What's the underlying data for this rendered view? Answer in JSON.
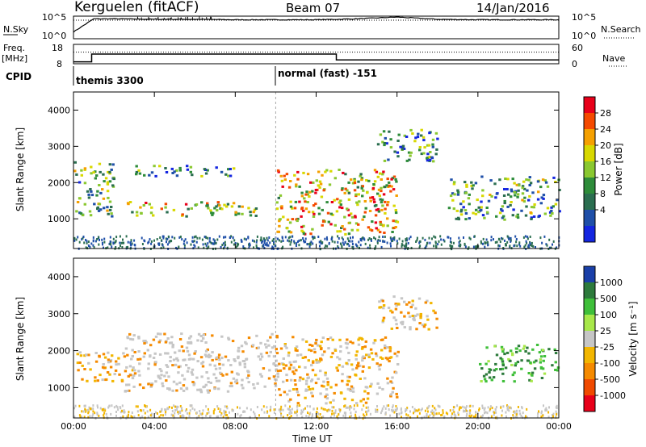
{
  "header": {
    "station": "Kerguelen (fitACF)",
    "beam": "Beam 07",
    "date": "14/Jan/2016"
  },
  "noise_panel": {
    "left_label": "N.Sky",
    "right_label": "N.Search",
    "tick_top": "10^5",
    "tick_bottom": "10^0",
    "right_tick_top": "10^5",
    "right_tick_bottom": "10^0"
  },
  "freq_panel": {
    "left_label_1": "Freq.",
    "left_label_2": "[MHz]",
    "right_label": "Nave",
    "ticks_left": [
      "18",
      "8"
    ],
    "ticks_right": [
      "60",
      "0"
    ]
  },
  "cpid": {
    "label": "CPID",
    "mode_1": "themis 3300",
    "mode_2": "normal (fast) -151"
  },
  "axes": {
    "ylabel": "Slant Range [km]",
    "xlabel": "Time UT",
    "yticks": [
      "4000",
      "3000",
      "2000",
      "1000"
    ],
    "xticks": [
      "00:00",
      "04:00",
      "08:00",
      "12:00",
      "16:00",
      "20:00",
      "00:00"
    ]
  },
  "power_scale": {
    "label": "Power [dB]",
    "ticks": [
      "28",
      "24",
      "20",
      "16",
      "12",
      "8",
      "4"
    ],
    "colors": [
      "#e8001a",
      "#f54a00",
      "#f5a000",
      "#d8d800",
      "#8ac830",
      "#2e8c3a",
      "#2b6e50",
      "#1f4fa8",
      "#1426e0"
    ]
  },
  "velocity_scale": {
    "label": "Velocity [m s⁻¹]",
    "ticks": [
      "1000",
      "500",
      "100",
      "25",
      "-25",
      "-100",
      "-500",
      "-1000"
    ],
    "colors": [
      "#1a3fa8",
      "#2d7a3c",
      "#3fbf3a",
      "#a8e84a",
      "#c6c6c6",
      "#f2b600",
      "#f58a00",
      "#f04a00",
      "#e8001a"
    ]
  },
  "chart_data": [
    {
      "type": "line",
      "title": "N.Sky",
      "x": [
        0,
        1,
        2,
        4,
        6,
        8,
        10,
        12,
        14,
        16,
        18,
        20,
        22,
        24
      ],
      "y_log": [
        1.5,
        4.4,
        4.4,
        4.3,
        4.3,
        4.2,
        4.2,
        4.2,
        4.4,
        4.8,
        4.3,
        4.2,
        4.2,
        4.2
      ],
      "xlim": [
        0,
        24
      ],
      "ylim_log": [
        0,
        5
      ]
    },
    {
      "type": "line",
      "title": "Freq.",
      "series": [
        {
          "name": "Freq.",
          "x": [
            0,
            0.9,
            0.9,
            13,
            13,
            24
          ],
          "y": [
            9,
            9,
            13,
            13,
            10,
            10
          ]
        },
        {
          "name": "Nave",
          "x": [
            0,
            24
          ],
          "y": [
            14,
            14
          ]
        }
      ],
      "xlim": [
        0,
        24
      ],
      "ylim": [
        8,
        18
      ]
    },
    {
      "type": "heatmap",
      "title": "Power [dB]",
      "xlim": [
        0,
        24
      ],
      "ylim": [
        180,
        4500
      ],
      "scale": [
        4,
        28
      ],
      "regions": [
        {
          "x": [
            0.0,
            2.0
          ],
          "y": [
            1100,
            2600
          ],
          "value": 14
        },
        {
          "x": [
            2.5,
            9.0
          ],
          "y": [
            1100,
            1500
          ],
          "value": 18
        },
        {
          "x": [
            3.0,
            8.0
          ],
          "y": [
            2200,
            2500
          ],
          "value": 10
        },
        {
          "x": [
            10.0,
            16.0
          ],
          "y": [
            600,
            2400
          ],
          "value": 20
        },
        {
          "x": [
            15.0,
            18.0
          ],
          "y": [
            2600,
            3500
          ],
          "value": 10
        },
        {
          "x": [
            18.5,
            24.0
          ],
          "y": [
            1000,
            2200
          ],
          "value": 12
        }
      ]
    },
    {
      "type": "heatmap",
      "title": "Velocity [m s⁻¹]",
      "xlim": [
        0,
        24
      ],
      "ylim": [
        180,
        4500
      ],
      "scale": [
        -1000,
        1000
      ],
      "regions": [
        {
          "x": [
            0.0,
            3.0
          ],
          "y": [
            1200,
            2000
          ],
          "value": -100
        },
        {
          "x": [
            2.5,
            10.0
          ],
          "y": [
            900,
            2500
          ],
          "value": 0
        },
        {
          "x": [
            10.0,
            16.0
          ],
          "y": [
            600,
            2400
          ],
          "value": -80
        },
        {
          "x": [
            15.0,
            18.0
          ],
          "y": [
            2600,
            3500
          ],
          "value": -60
        },
        {
          "x": [
            20.0,
            24.0
          ],
          "y": [
            1200,
            2200
          ],
          "value": 200
        }
      ]
    }
  ]
}
